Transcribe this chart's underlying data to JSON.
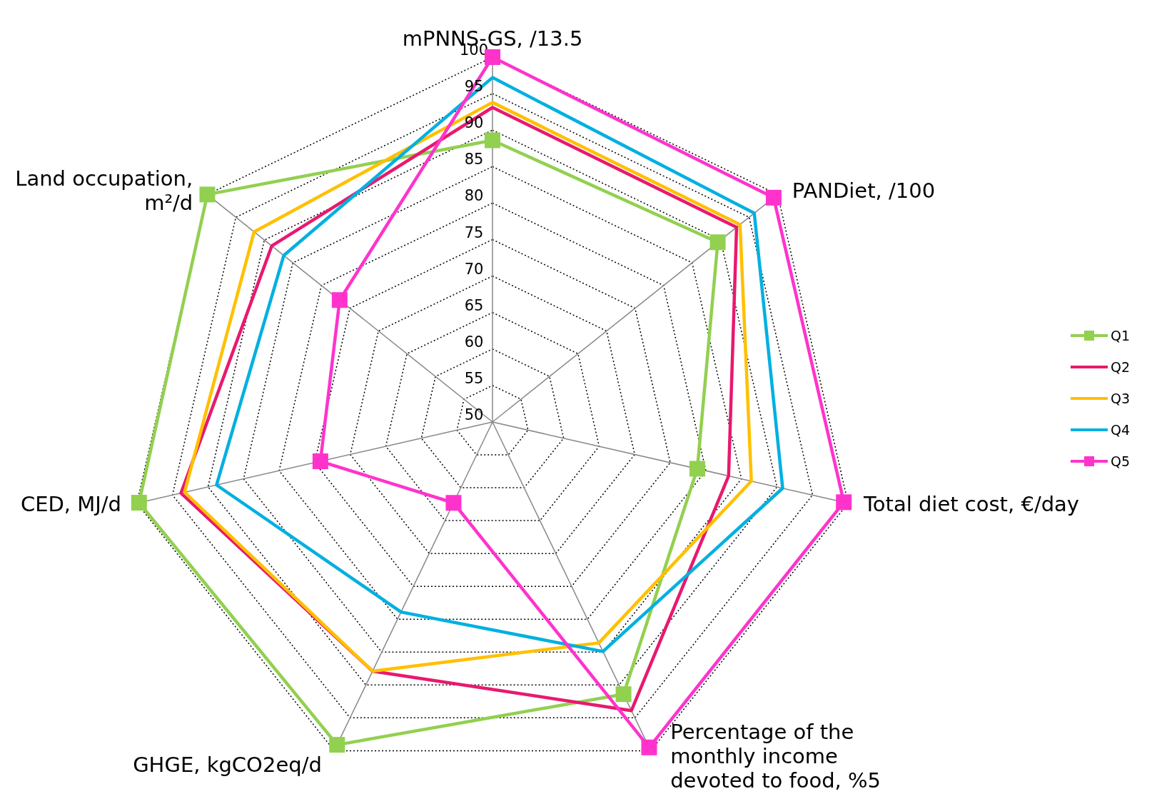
{
  "chart_data": {
    "type": "radar",
    "categories": [
      "mPNNS-GS, /13.5",
      "PANDiet, /100",
      "Total diet cost, €/day",
      "Percentage of the monthly income devoted to food, %5",
      "GHGE, kgCO2eq/d",
      "CED, MJ/d",
      "Land occupation, m²/d"
    ],
    "ylim": [
      50,
      100
    ],
    "yticks": [
      50,
      55,
      60,
      65,
      70,
      75,
      80,
      85,
      90,
      95,
      100
    ],
    "grid": true,
    "legend": "right",
    "line_style": "solid",
    "series": [
      {
        "name": "Q1",
        "color": "#92d050",
        "marker": "square",
        "values": [
          88.6,
          89.5,
          78.8,
          91.4,
          99.1,
          99.7,
          100
        ]
      },
      {
        "name": "Q2",
        "color": "#e8196e",
        "marker": "none",
        "values": [
          93.1,
          92.8,
          83.2,
          93.9,
          87.9,
          93.8,
          88.7
        ]
      },
      {
        "name": "Q3",
        "color": "#ffc000",
        "marker": "none",
        "values": [
          93.8,
          93.4,
          86.4,
          83.6,
          87.9,
          93.3,
          91.8
        ]
      },
      {
        "name": "Q4",
        "color": "#00b0e0",
        "marker": "none",
        "values": [
          97.2,
          95.9,
          90.8,
          84.9,
          78.9,
          88.8,
          86.6
        ]
      },
      {
        "name": "Q5",
        "color": "#ff33cc",
        "marker": "square",
        "values": [
          100,
          99.3,
          99.4,
          99.5,
          62.3,
          74.2,
          76.8
        ]
      }
    ]
  }
}
